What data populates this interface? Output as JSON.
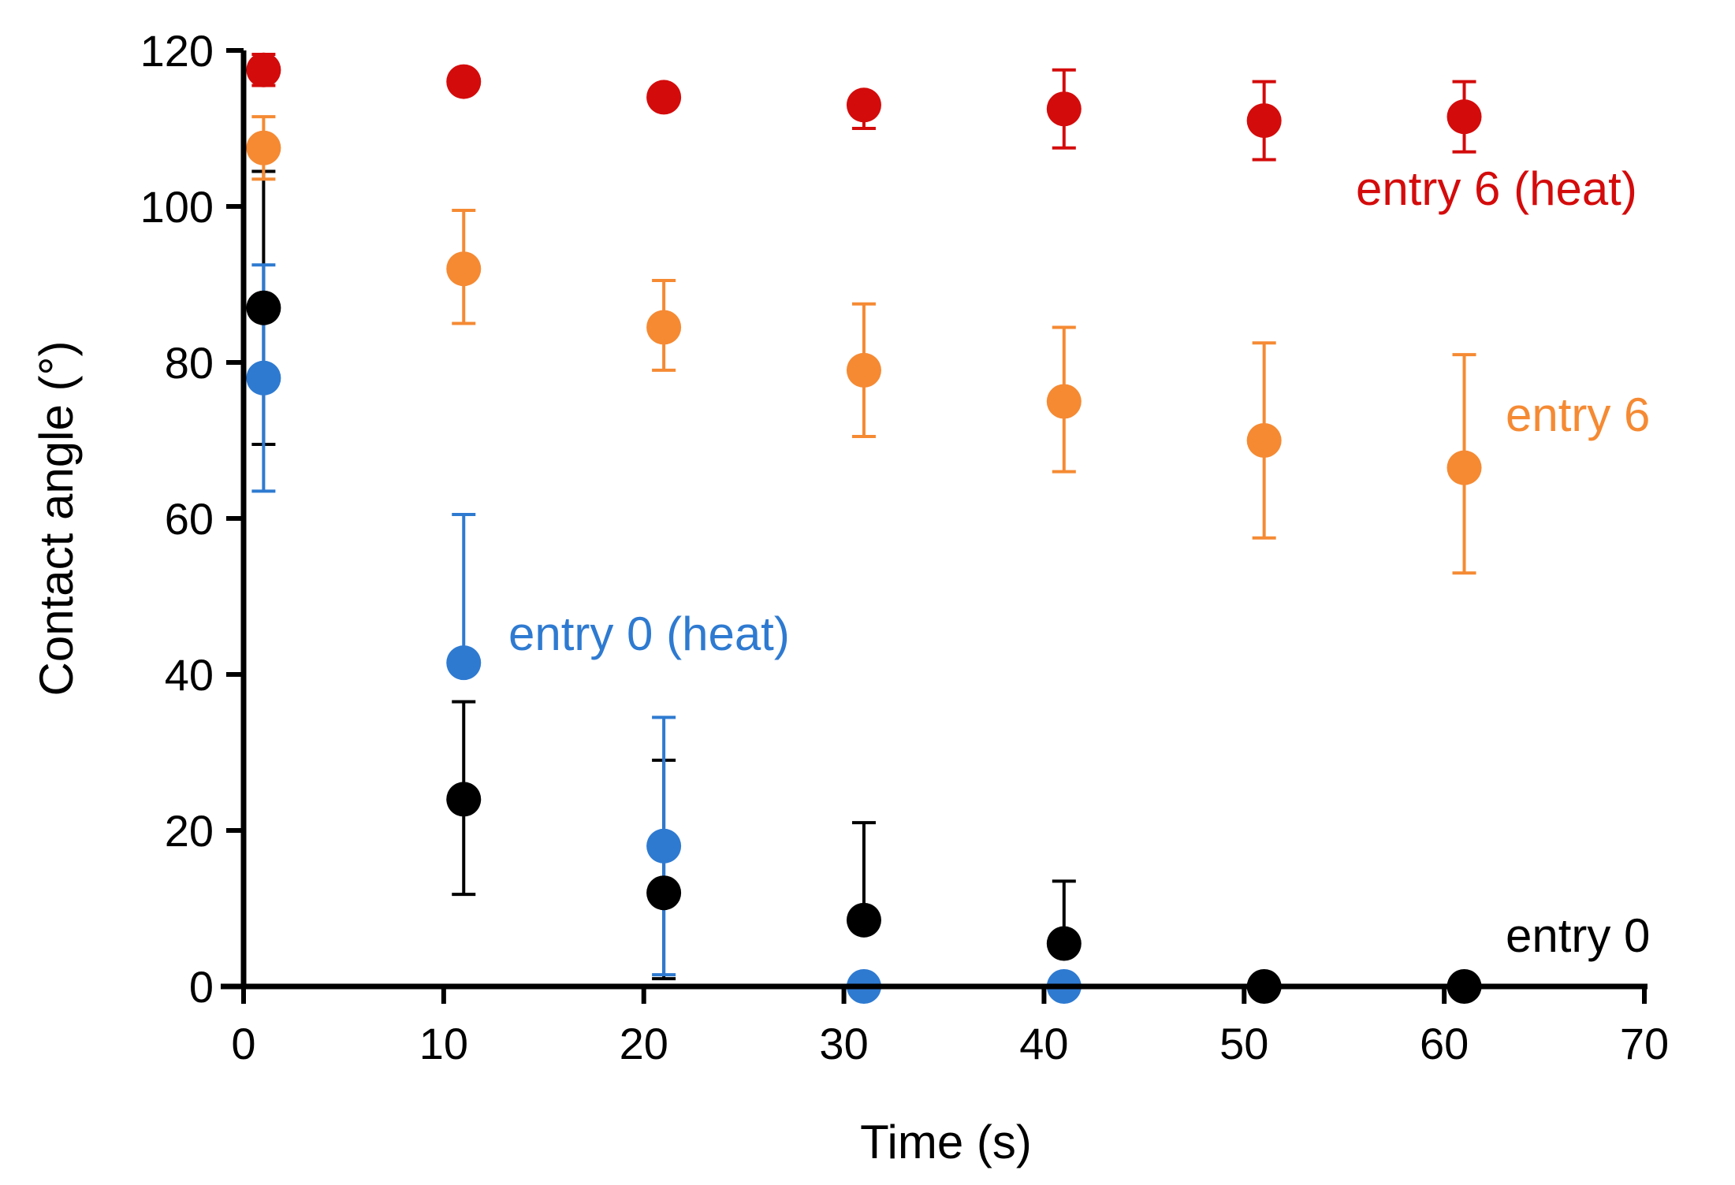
{
  "chart_data": {
    "type": "scatter",
    "title": "",
    "xlabel": "Time (s)",
    "ylabel": "Contact angle (°)",
    "xlim": [
      0,
      70
    ],
    "ylim": [
      0,
      120
    ],
    "x_ticks": [
      0,
      10,
      20,
      30,
      40,
      50,
      60,
      70
    ],
    "y_ticks": [
      0,
      20,
      40,
      60,
      80,
      100,
      120
    ],
    "x_tick_labels": [
      "0",
      "10",
      "20",
      "30",
      "40",
      "50",
      "60",
      "70"
    ],
    "y_tick_labels": [
      "0",
      "20",
      "40",
      "60",
      "80",
      "100",
      "120"
    ],
    "grid": false,
    "legend": "inline labels next to series",
    "series": [
      {
        "name": "entry 0",
        "label": "entry 0",
        "color": "#000000",
        "x": [
          1,
          11,
          21,
          31,
          41,
          51,
          61
        ],
        "y": [
          87,
          24,
          12,
          8.5,
          5.5,
          0,
          0
        ],
        "err_plus": [
          17.5,
          12.5,
          17,
          12.5,
          8,
          0,
          0
        ],
        "err_minus": [
          17.5,
          12.2,
          11,
          0,
          0,
          0,
          0
        ]
      },
      {
        "name": "entry 0 (heat)",
        "label": "entry 0 (heat)",
        "color": "#2e7ad1",
        "x": [
          1,
          11,
          21,
          31,
          41
        ],
        "y": [
          78,
          41.5,
          18,
          0,
          0
        ],
        "err_plus": [
          14.5,
          19,
          16.5,
          0,
          0
        ],
        "err_minus": [
          14.5,
          0,
          16.5,
          0,
          0
        ]
      },
      {
        "name": "entry 6",
        "label": "entry 6",
        "color": "#f58a33",
        "x": [
          1,
          11,
          21,
          31,
          41,
          51,
          61
        ],
        "y": [
          107.5,
          92,
          84.5,
          79,
          75,
          70,
          66.5
        ],
        "err_plus": [
          4,
          7.5,
          6,
          8.5,
          9.5,
          12.5,
          14.5
        ],
        "err_minus": [
          4,
          7,
          5.5,
          8.5,
          9,
          12.5,
          13.5
        ]
      },
      {
        "name": "entry 6 (heat)",
        "label": "entry 6 (heat)",
        "color": "#d40b0b",
        "x": [
          1,
          11,
          21,
          31,
          41,
          51,
          61
        ],
        "y": [
          117.5,
          116,
          114,
          113,
          112.5,
          111,
          111.5
        ],
        "err_plus": [
          2,
          0,
          0,
          0,
          5,
          5,
          4.5
        ],
        "err_minus": [
          2,
          0,
          0,
          3,
          5,
          5,
          4.5
        ]
      }
    ]
  }
}
